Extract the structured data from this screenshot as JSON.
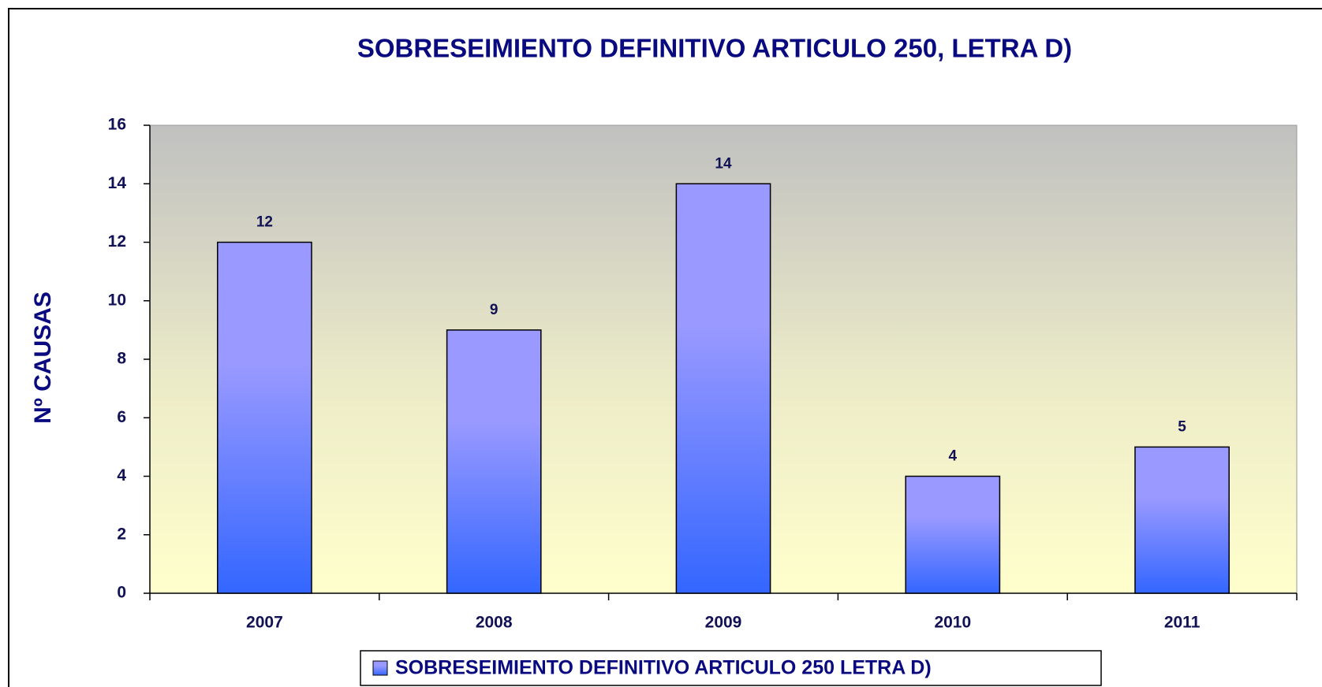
{
  "chart_data": {
    "type": "bar",
    "title": "SOBRESEIMIENTO DEFINITIVO ARTICULO 250,  LETRA D)",
    "y_label": "Nº CAUSAS",
    "categories": [
      "2007",
      "2008",
      "2009",
      "2010",
      "2011"
    ],
    "series": [
      {
        "name": "SOBRESEIMIENTO DEFINITIVO ARTICULO 250 LETRA D)",
        "color": "#9999ff",
        "values": [
          12,
          9,
          14,
          4,
          5
        ]
      }
    ],
    "ylim": [
      0,
      16
    ],
    "yticks": [
      0,
      2,
      4,
      6,
      8,
      10,
      12,
      14,
      16
    ],
    "legend": "bottom"
  }
}
